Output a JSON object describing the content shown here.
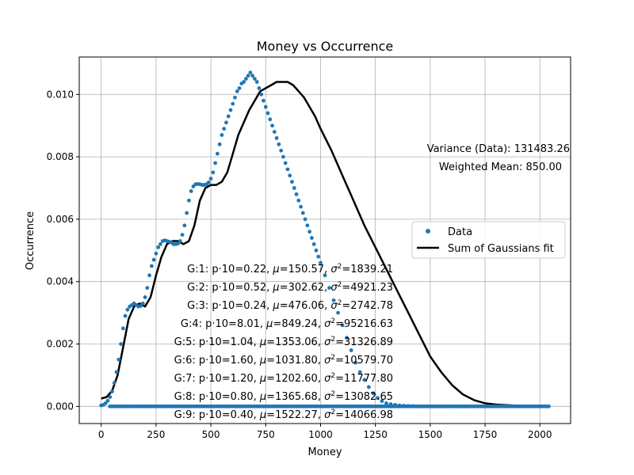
{
  "chart_data": {
    "type": "scatter",
    "title": "Money vs Occurrence",
    "xlabel": "Money",
    "ylabel": "Occurrence",
    "xlim": [
      -100,
      2140
    ],
    "ylim": [
      -0.00055,
      0.0112
    ],
    "xticks": [
      0,
      250,
      500,
      750,
      1000,
      1250,
      1500,
      1750,
      2000
    ],
    "xtick_labels": [
      "0",
      "250",
      "500",
      "750",
      "1000",
      "1250",
      "1500",
      "1750",
      "2000"
    ],
    "yticks": [
      0.0,
      0.002,
      0.004,
      0.006,
      0.008,
      0.01
    ],
    "ytick_labels": [
      "0.000",
      "0.002",
      "0.004",
      "0.006",
      "0.008",
      "0.010"
    ],
    "grid": true,
    "legend_position": "center-right",
    "series": [
      {
        "name": "Data",
        "kind": "scatter",
        "color": "#1f77b4",
        "x": [
          0,
          10,
          20,
          30,
          40,
          50,
          60,
          70,
          80,
          90,
          100,
          110,
          120,
          130,
          140,
          150,
          160,
          170,
          180,
          190,
          200,
          210,
          220,
          230,
          240,
          250,
          260,
          270,
          280,
          290,
          300,
          310,
          320,
          330,
          340,
          350,
          360,
          370,
          380,
          390,
          400,
          410,
          420,
          430,
          440,
          450,
          460,
          470,
          480,
          490,
          500,
          510,
          520,
          530,
          540,
          550,
          560,
          570,
          580,
          590,
          600,
          610,
          620,
          630,
          640,
          650,
          660,
          670,
          680,
          690,
          700,
          710,
          720,
          730,
          740,
          750,
          760,
          770,
          780,
          790,
          800,
          810,
          820,
          830,
          840,
          850,
          860,
          870,
          880,
          890,
          900,
          910,
          920,
          930,
          940,
          950,
          960,
          970,
          980,
          990,
          1000,
          1020,
          1040,
          1060,
          1080,
          1100,
          1120,
          1140,
          1160,
          1180,
          1200,
          1220,
          1240,
          1260,
          1280,
          1300,
          1320,
          1340,
          1360,
          1380,
          1400,
          1420,
          1440,
          1460,
          1480,
          1500,
          1520,
          1540,
          1560,
          1580,
          1600,
          1620,
          1640,
          1660,
          1680,
          1700,
          1720,
          1740,
          1760,
          1780,
          1800,
          1850,
          1900,
          1950,
          2000,
          2040
        ],
        "y": [
          3e-05,
          5e-05,
          0.0001,
          0.00018,
          0.0003,
          0.00048,
          0.00075,
          0.0011,
          0.0015,
          0.002,
          0.0025,
          0.0029,
          0.0031,
          0.0032,
          0.00325,
          0.0033,
          0.00325,
          0.0032,
          0.00322,
          0.0033,
          0.0035,
          0.0038,
          0.0042,
          0.0045,
          0.0047,
          0.0049,
          0.0051,
          0.0052,
          0.0053,
          0.00532,
          0.0053,
          0.00528,
          0.00525,
          0.0052,
          0.0052,
          0.00522,
          0.0053,
          0.0055,
          0.0058,
          0.0062,
          0.0066,
          0.0069,
          0.00705,
          0.00712,
          0.00713,
          0.00712,
          0.0071,
          0.0071,
          0.00712,
          0.00718,
          0.0073,
          0.0075,
          0.0078,
          0.0081,
          0.0084,
          0.0087,
          0.0089,
          0.0091,
          0.0093,
          0.0095,
          0.0097,
          0.0099,
          0.0101,
          0.0102,
          0.01035,
          0.0104,
          0.0105,
          0.0106,
          0.0107,
          0.0106,
          0.0105,
          0.0104,
          0.0102,
          0.01,
          0.0098,
          0.0096,
          0.0094,
          0.0092,
          0.009,
          0.0088,
          0.0086,
          0.0084,
          0.0082,
          0.008,
          0.0078,
          0.0076,
          0.0074,
          0.0072,
          0.007,
          0.0068,
          0.0066,
          0.0064,
          0.0062,
          0.006,
          0.0058,
          0.0056,
          0.0054,
          0.0052,
          0.005,
          0.0048,
          0.0046,
          0.0042,
          0.0038,
          0.0034,
          0.003,
          0.0026,
          0.0022,
          0.0018,
          0.0014,
          0.0011,
          0.00085,
          0.00062,
          0.00042,
          0.00027,
          0.00017,
          0.0001,
          7e-05,
          5e-05,
          3e-05,
          2e-05,
          1e-05,
          1e-05,
          0.0,
          0.0,
          0.0,
          0.0,
          0.0,
          0.0,
          0.0,
          0.0,
          0.0,
          0.0,
          0.0,
          0.0,
          0.0,
          0.0,
          0.0,
          0.0,
          0.0,
          0.0,
          0.0,
          0.0,
          0.0,
          0.0,
          0.0,
          0.0
        ]
      },
      {
        "name": "Sum of Gaussians fit",
        "kind": "line",
        "color": "#000000",
        "x": [
          0,
          25,
          50,
          75,
          100,
          125,
          150,
          175,
          200,
          225,
          250,
          275,
          300,
          325,
          350,
          375,
          400,
          425,
          450,
          475,
          500,
          525,
          550,
          575,
          600,
          625,
          650,
          675,
          700,
          725,
          750,
          775,
          800,
          825,
          850,
          875,
          900,
          925,
          950,
          975,
          1000,
          1050,
          1100,
          1150,
          1200,
          1250,
          1300,
          1350,
          1400,
          1450,
          1500,
          1550,
          1600,
          1650,
          1700,
          1750,
          1800,
          1850,
          1900,
          1950,
          2000,
          2040
        ],
        "y": [
          0.00025,
          0.0003,
          0.0005,
          0.001,
          0.0019,
          0.0028,
          0.0032,
          0.0033,
          0.0032,
          0.0035,
          0.0042,
          0.0048,
          0.0052,
          0.0053,
          0.0053,
          0.0052,
          0.0053,
          0.0058,
          0.0066,
          0.007,
          0.0071,
          0.0071,
          0.0072,
          0.0075,
          0.0081,
          0.0087,
          0.0091,
          0.0095,
          0.0098,
          0.0101,
          0.0102,
          0.0103,
          0.0104,
          0.0104,
          0.0104,
          0.0103,
          0.0101,
          0.0099,
          0.0096,
          0.0093,
          0.0089,
          0.0082,
          0.0074,
          0.0066,
          0.0058,
          0.0051,
          0.0044,
          0.0037,
          0.003,
          0.0023,
          0.0016,
          0.0011,
          0.00068,
          0.00038,
          0.0002,
          0.0001,
          6e-05,
          4e-05,
          2e-05,
          1e-05,
          0.0,
          0.0
        ]
      }
    ],
    "baseline_points": {
      "x_start": 40,
      "x_end": 2040,
      "step": 10,
      "y": 0.0
    },
    "annotations": {
      "variance": "Variance (Data): 131483.26",
      "weighted_mean": "Weighted Mean: 850.00",
      "gaussians": [
        {
          "label": "G:1: p·10=0.22, ",
          "mu": "=150.57, ",
          "s2": "=1839.21"
        },
        {
          "label": "G:2: p·10=0.52, ",
          "mu": "=302.62, ",
          "s2": "=4921.23"
        },
        {
          "label": "G:3: p·10=0.24, ",
          "mu": "=476.06, ",
          "s2": "=2742.78"
        },
        {
          "label": "G:4: p·10=8.01, ",
          "mu": "=849.24, ",
          "s2": "=95216.63"
        },
        {
          "label": "G:5: p·10=1.04, ",
          "mu": "=1353.06, ",
          "s2": "=31326.89"
        },
        {
          "label": "G:6: p·10=1.60, ",
          "mu": "=1031.80, ",
          "s2": "=10579.70"
        },
        {
          "label": "G:7: p·10=1.20, ",
          "mu": "=1202.60, ",
          "s2": "=11777.80"
        },
        {
          "label": "G:8: p·10=0.80, ",
          "mu": "=1365.68, ",
          "s2": "=13082.65"
        },
        {
          "label": "G:9: p·10=0.40, ",
          "mu": "=1522.27, ",
          "s2": "=14066.98"
        }
      ]
    }
  }
}
